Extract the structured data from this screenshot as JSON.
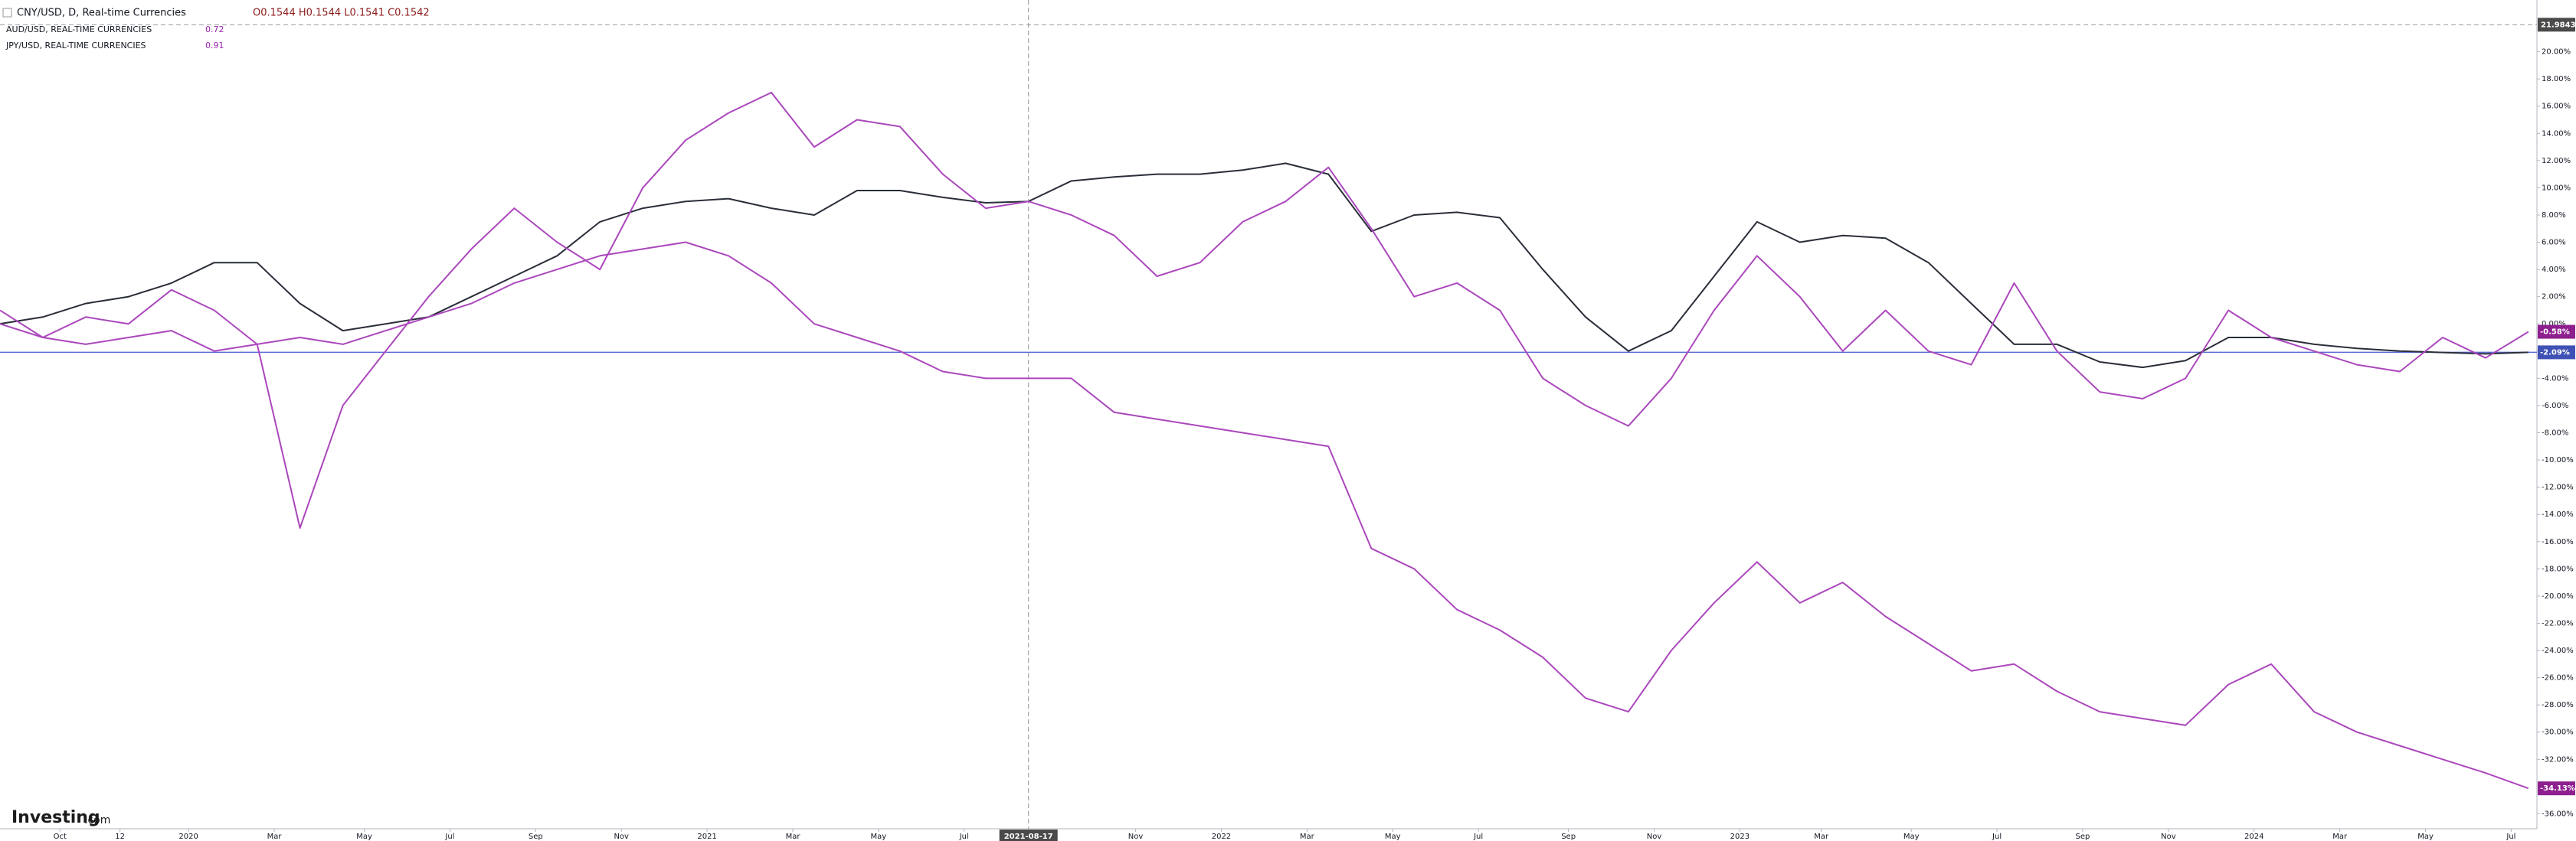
{
  "chart_data": {
    "type": "line",
    "x": [
      0,
      1,
      2,
      3,
      4,
      5,
      6,
      7,
      8,
      9,
      10,
      11,
      12,
      13,
      14,
      15,
      16,
      17,
      18,
      19,
      20,
      21,
      22,
      23,
      24,
      25,
      26,
      27,
      28,
      29,
      30,
      31,
      32,
      33,
      34,
      35,
      36,
      37,
      38,
      39,
      40,
      41,
      42,
      43,
      44,
      45,
      46,
      47,
      48,
      49,
      50,
      51,
      52,
      53,
      54,
      55,
      56,
      57,
      58,
      59
    ],
    "xlim": [
      0,
      59.2
    ],
    "xticks": [
      {
        "value": 1.4,
        "label": "Oct"
      },
      {
        "value": 2.8,
        "label": "12"
      },
      {
        "value": 4.4,
        "label": "2020"
      },
      {
        "value": 6.4,
        "label": "Mar"
      },
      {
        "value": 8.5,
        "label": "May"
      },
      {
        "value": 10.5,
        "label": "Jul"
      },
      {
        "value": 12.5,
        "label": "Sep"
      },
      {
        "value": 14.5,
        "label": "Nov"
      },
      {
        "value": 16.5,
        "label": "2021"
      },
      {
        "value": 18.5,
        "label": "Mar"
      },
      {
        "value": 20.5,
        "label": "May"
      },
      {
        "value": 22.5,
        "label": "Jul"
      },
      {
        "value": 26.5,
        "label": "Nov"
      },
      {
        "value": 28.5,
        "label": "2022"
      },
      {
        "value": 30.5,
        "label": "Mar"
      },
      {
        "value": 32.5,
        "label": "May"
      },
      {
        "value": 34.5,
        "label": "Jul"
      },
      {
        "value": 36.6,
        "label": "Sep"
      },
      {
        "value": 38.6,
        "label": "Nov"
      },
      {
        "value": 40.6,
        "label": "2023"
      },
      {
        "value": 42.5,
        "label": "Mar"
      },
      {
        "value": 44.6,
        "label": "May"
      },
      {
        "value": 46.6,
        "label": "Jul"
      },
      {
        "value": 48.6,
        "label": "Sep"
      },
      {
        "value": 50.6,
        "label": "Nov"
      },
      {
        "value": 52.6,
        "label": "2024"
      },
      {
        "value": 54.6,
        "label": "Mar"
      },
      {
        "value": 56.6,
        "label": "May"
      },
      {
        "value": 58.6,
        "label": "Jul"
      }
    ],
    "ylim": [
      -37.1,
      23.8
    ],
    "yticks": [
      {
        "value": 20,
        "label": "20.00%"
      },
      {
        "value": 18,
        "label": "18.00%"
      },
      {
        "value": 16,
        "label": "16.00%"
      },
      {
        "value": 14,
        "label": "14.00%"
      },
      {
        "value": 12,
        "label": "12.00%"
      },
      {
        "value": 10,
        "label": "10.00%"
      },
      {
        "value": 8,
        "label": "8.00%"
      },
      {
        "value": 6,
        "label": "6.00%"
      },
      {
        "value": 4,
        "label": "4.00%"
      },
      {
        "value": 2,
        "label": "2.00%"
      },
      {
        "value": 0,
        "label": "0.00%"
      },
      {
        "value": -2,
        "label": "-2.00%"
      },
      {
        "value": -4,
        "label": "-4.00%"
      },
      {
        "value": -6,
        "label": "-6.00%"
      },
      {
        "value": -8,
        "label": "-8.00%"
      },
      {
        "value": -10,
        "label": "-10.00%"
      },
      {
        "value": -12,
        "label": "-12.00%"
      },
      {
        "value": -14,
        "label": "-14.00%"
      },
      {
        "value": -16,
        "label": "-16.00%"
      },
      {
        "value": -18,
        "label": "-18.00%"
      },
      {
        "value": -20,
        "label": "-20.00%"
      },
      {
        "value": -22,
        "label": "-22.00%"
      },
      {
        "value": -24,
        "label": "-24.00%"
      },
      {
        "value": -26,
        "label": "-26.00%"
      },
      {
        "value": -28,
        "label": "-28.00%"
      },
      {
        "value": -30,
        "label": "-30.00%"
      },
      {
        "value": -32,
        "label": "-32.00%"
      },
      {
        "value": -34,
        "label": "-34.00%"
      },
      {
        "value": -36,
        "label": "-36.00%"
      }
    ],
    "grid": false,
    "series": [
      {
        "name": "CNY/USD, D, Real-time Currencies",
        "legend_value": "O0.1544 H0.1544 L0.1541 C0.1542",
        "color": "#2a2e39",
        "label_color": "#3f51b5",
        "price_line": true,
        "price_line_color": "#5b6bd6",
        "last_label": "-2.09%",
        "values": [
          0.0,
          0.5,
          1.5,
          2.0,
          3.0,
          4.5,
          4.5,
          1.5,
          -0.5,
          0.0,
          0.5,
          2.0,
          3.5,
          5.0,
          7.5,
          8.5,
          9.0,
          9.2,
          8.5,
          8.0,
          9.8,
          9.8,
          9.3,
          8.9,
          9.0,
          10.5,
          10.8,
          11.0,
          11.0,
          11.3,
          11.8,
          11.0,
          6.8,
          8.0,
          8.2,
          7.8,
          4.0,
          0.5,
          -2.0,
          -0.5,
          3.5,
          7.5,
          6.0,
          6.5,
          6.3,
          4.5,
          1.5,
          -1.5,
          -1.5,
          -2.8,
          -3.2,
          -2.7,
          -1.0,
          -1.0,
          -1.5,
          -1.8,
          -2.0,
          -2.1,
          -2.2,
          -2.09
        ]
      },
      {
        "name": "AUD/USD, REAL-TIME CURRENCIES",
        "legend_value": 0.72,
        "color": "#ab47bc",
        "label_color": "#8e1f8e",
        "last_label": "-0.58%",
        "values": [
          1.0,
          -1.0,
          0.5,
          0.0,
          2.5,
          1.0,
          -1.5,
          -15.0,
          -6.0,
          -2.0,
          2.0,
          5.5,
          8.5,
          6.0,
          4.0,
          10.0,
          13.5,
          15.5,
          17.0,
          13.0,
          15.0,
          14.5,
          11.0,
          8.5,
          9.0,
          8.0,
          6.5,
          3.5,
          4.5,
          7.5,
          9.0,
          11.5,
          7.0,
          2.0,
          3.0,
          1.0,
          -4.0,
          -6.0,
          -7.5,
          -4.0,
          1.0,
          5.0,
          2.0,
          -2.0,
          1.0,
          -2.0,
          -3.0,
          3.0,
          -2.0,
          -5.0,
          -5.5,
          -4.0,
          1.0,
          -1.0,
          -2.0,
          -3.0,
          -3.5,
          -1.0,
          -2.5,
          -0.58
        ]
      },
      {
        "name": "JPY/USD, REAL-TIME CURRENCIES",
        "legend_value": 0.91,
        "color": "#ab47bc",
        "label_color": "#8e1f8e",
        "last_label": "-34.13%",
        "values": [
          0.0,
          -1.0,
          -1.5,
          -1.0,
          -0.5,
          -2.0,
          -1.5,
          -1.0,
          -1.5,
          -0.5,
          0.5,
          1.5,
          3.0,
          4.0,
          5.0,
          5.5,
          6.0,
          5.0,
          3.0,
          0.0,
          -1.0,
          -2.0,
          -3.5,
          -4.0,
          -4.0,
          -4.0,
          -6.5,
          -7.0,
          -7.5,
          -8.0,
          -8.5,
          -9.0,
          -16.5,
          -18.0,
          -21.0,
          -22.5,
          -24.5,
          -27.5,
          -28.5,
          -24.0,
          -20.5,
          -17.5,
          -20.5,
          -19.0,
          -21.5,
          -23.5,
          -25.5,
          -25.0,
          -27.0,
          -28.5,
          -29.0,
          -29.5,
          -26.5,
          -25.0,
          -28.5,
          -30.0,
          -31.0,
          -32.0,
          -33.0,
          -34.13
        ]
      }
    ],
    "crosshair": {
      "x": 24.0,
      "x_label": "2021-08-17",
      "y": 21.9843
    },
    "watermark": {
      "brand": "Investing",
      "suffix": ".com"
    }
  }
}
